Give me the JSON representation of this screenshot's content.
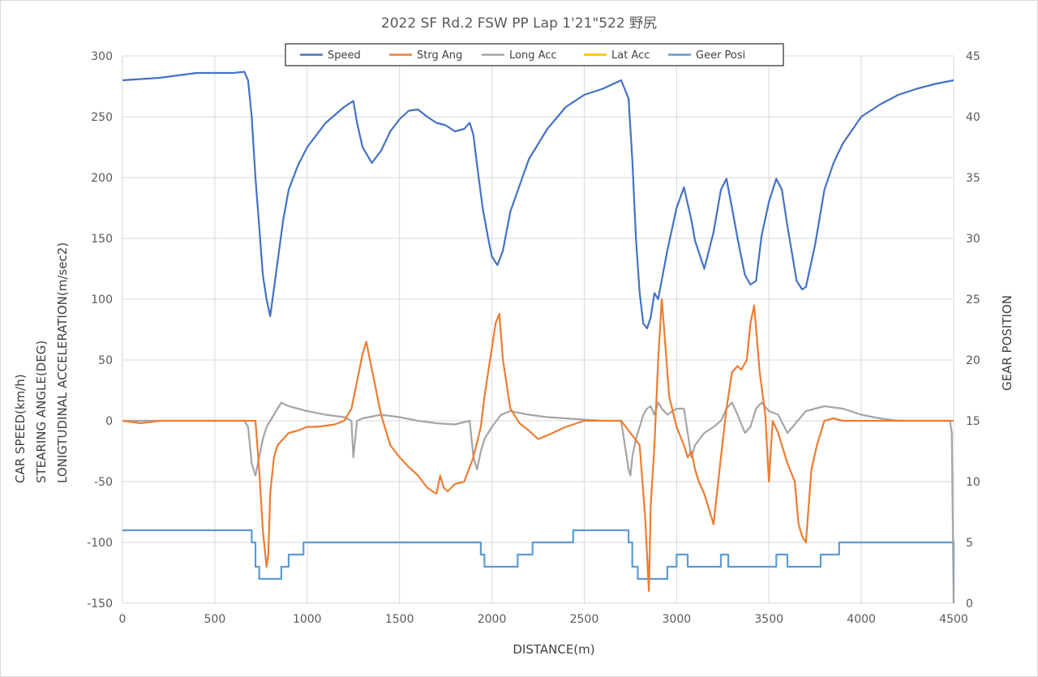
{
  "chart_data": {
    "type": "line",
    "title": "2022 SF Rd.2 FSW PP Lap 1'21\"522 野尻",
    "xlabel": "DISTANCE(m)",
    "ylabel_lines": [
      "CAR SPEED(km/h)",
      "STEARING ANGLE(DEG)",
      "LONIGTUDINAL ACCELERATION(m/sec2)"
    ],
    "y2label": "GEAR POSITION",
    "xlim": [
      0,
      4500
    ],
    "ylim": [
      -150,
      300
    ],
    "y2lim": [
      0,
      45
    ],
    "x_ticks": [
      "0",
      "500",
      "1000",
      "1500",
      "2000",
      "2500",
      "3000",
      "3500",
      "4000",
      "4500"
    ],
    "y_ticks": [
      "300",
      "250",
      "200",
      "150",
      "100",
      "50",
      "0",
      "-50",
      "-100",
      "-150"
    ],
    "y2_ticks": [
      "45",
      "40",
      "35",
      "30",
      "25",
      "20",
      "15",
      "10",
      "5",
      "0"
    ],
    "grid": true,
    "legend_position": "top",
    "series": [
      {
        "name": "Speed",
        "color": "#4472c4",
        "axis": "left",
        "x": [
          0,
          100,
          200,
          300,
          400,
          500,
          600,
          660,
          680,
          700,
          720,
          740,
          760,
          780,
          800,
          830,
          870,
          900,
          950,
          1000,
          1100,
          1200,
          1250,
          1270,
          1300,
          1350,
          1400,
          1450,
          1500,
          1550,
          1600,
          1650,
          1700,
          1750,
          1800,
          1850,
          1880,
          1900,
          1920,
          1950,
          1980,
          2000,
          2030,
          2060,
          2100,
          2200,
          2300,
          2400,
          2500,
          2600,
          2700,
          2740,
          2760,
          2780,
          2800,
          2820,
          2840,
          2860,
          2880,
          2900,
          2950,
          3000,
          3040,
          3080,
          3100,
          3150,
          3200,
          3240,
          3270,
          3300,
          3330,
          3370,
          3400,
          3430,
          3460,
          3500,
          3540,
          3570,
          3600,
          3650,
          3680,
          3700,
          3750,
          3800,
          3850,
          3900,
          4000,
          4100,
          4200,
          4300,
          4400,
          4500
        ],
        "y": [
          280,
          281,
          282,
          284,
          286,
          286,
          286,
          287,
          280,
          250,
          200,
          160,
          120,
          100,
          86,
          120,
          165,
          190,
          210,
          225,
          245,
          258,
          263,
          245,
          225,
          212,
          222,
          238,
          248,
          255,
          256,
          250,
          245,
          243,
          238,
          240,
          245,
          235,
          210,
          175,
          150,
          135,
          128,
          140,
          172,
          215,
          240,
          258,
          268,
          273,
          280,
          265,
          215,
          150,
          105,
          80,
          76,
          85,
          105,
          100,
          140,
          175,
          192,
          165,
          148,
          125,
          155,
          190,
          199,
          175,
          150,
          120,
          112,
          115,
          152,
          180,
          199,
          190,
          160,
          115,
          108,
          110,
          145,
          190,
          212,
          228,
          250,
          260,
          268,
          273,
          277,
          280
        ]
      },
      {
        "name": "Strg Ang",
        "color": "#ed7d31",
        "axis": "left",
        "x": [
          0,
          100,
          200,
          300,
          400,
          500,
          600,
          700,
          720,
          740,
          760,
          780,
          790,
          800,
          820,
          840,
          870,
          900,
          950,
          1000,
          1050,
          1100,
          1150,
          1200,
          1240,
          1280,
          1300,
          1320,
          1340,
          1360,
          1380,
          1400,
          1450,
          1500,
          1550,
          1600,
          1650,
          1700,
          1720,
          1740,
          1760,
          1800,
          1850,
          1900,
          1940,
          1960,
          1990,
          2020,
          2040,
          2060,
          2100,
          2150,
          2200,
          2250,
          2300,
          2400,
          2500,
          2600,
          2700,
          2800,
          2830,
          2850,
          2860,
          2880,
          2900,
          2920,
          2940,
          2960,
          3000,
          3040,
          3060,
          3080,
          3100,
          3120,
          3150,
          3200,
          3240,
          3270,
          3300,
          3330,
          3350,
          3380,
          3400,
          3420,
          3450,
          3480,
          3500,
          3520,
          3550,
          3600,
          3640,
          3660,
          3680,
          3700,
          3730,
          3760,
          3800,
          3850,
          3900,
          4000,
          4100,
          4200,
          4300,
          4400,
          4500
        ],
        "y": [
          0,
          -2,
          0,
          0,
          0,
          0,
          0,
          0,
          0,
          -40,
          -90,
          -120,
          -110,
          -60,
          -30,
          -20,
          -15,
          -10,
          -8,
          -5,
          -5,
          -4,
          -3,
          0,
          10,
          40,
          55,
          65,
          50,
          35,
          20,
          5,
          -20,
          -30,
          -38,
          -45,
          -55,
          -60,
          -45,
          -55,
          -58,
          -52,
          -50,
          -30,
          -5,
          20,
          50,
          80,
          88,
          50,
          10,
          -2,
          -8,
          -15,
          -12,
          -5,
          0,
          0,
          0,
          -20,
          -80,
          -140,
          -70,
          -20,
          50,
          100,
          60,
          20,
          -5,
          -20,
          -30,
          -25,
          -40,
          -50,
          -60,
          -85,
          -30,
          10,
          40,
          45,
          42,
          50,
          80,
          95,
          40,
          5,
          -50,
          0,
          -10,
          -35,
          -50,
          -85,
          -95,
          -100,
          -40,
          -20,
          0,
          2,
          0,
          0,
          0,
          0,
          0,
          0,
          0
        ]
      },
      {
        "name": "Long Acc",
        "color": "#a5a5a5",
        "axis": "left",
        "x": [
          0,
          100,
          200,
          300,
          400,
          500,
          600,
          660,
          680,
          690,
          700,
          720,
          740,
          760,
          780,
          800,
          820,
          840,
          860,
          900,
          950,
          1000,
          1100,
          1200,
          1240,
          1250,
          1270,
          1300,
          1400,
          1500,
          1600,
          1700,
          1800,
          1880,
          1900,
          1920,
          1940,
          1960,
          1980,
          2000,
          2050,
          2100,
          2200,
          2300,
          2400,
          2500,
          2600,
          2700,
          2740,
          2750,
          2760,
          2780,
          2800,
          2820,
          2840,
          2860,
          2880,
          2900,
          2920,
          2950,
          3000,
          3040,
          3060,
          3080,
          3100,
          3150,
          3200,
          3240,
          3270,
          3300,
          3330,
          3370,
          3400,
          3430,
          3460,
          3500,
          3550,
          3600,
          3700,
          3800,
          3900,
          4000,
          4100,
          4200,
          4300,
          4400,
          4480,
          4490,
          4500
        ],
        "y": [
          0,
          0,
          0,
          0,
          0,
          0,
          0,
          0,
          -5,
          -20,
          -35,
          -45,
          -30,
          -15,
          -5,
          0,
          5,
          10,
          15,
          12,
          10,
          8,
          5,
          3,
          0,
          -30,
          0,
          2,
          5,
          3,
          0,
          -2,
          -3,
          0,
          -30,
          -40,
          -25,
          -15,
          -10,
          -5,
          5,
          8,
          5,
          3,
          2,
          1,
          0,
          0,
          -40,
          -45,
          -30,
          -15,
          -5,
          5,
          10,
          12,
          5,
          15,
          10,
          5,
          10,
          10,
          -10,
          -30,
          -20,
          -10,
          -5,
          0,
          10,
          15,
          5,
          -10,
          -5,
          10,
          15,
          8,
          5,
          -10,
          8,
          12,
          10,
          5,
          2,
          0,
          0,
          0,
          0,
          -10,
          -150
        ]
      },
      {
        "name": "Lat Acc",
        "color": "#ffc000",
        "axis": "left",
        "x": [],
        "y": []
      },
      {
        "name": "Geer Posi",
        "color": "#5b9bd5",
        "axis": "right",
        "step": true,
        "x": [
          0,
          700,
          720,
          740,
          860,
          900,
          980,
          1940,
          1960,
          2140,
          2220,
          2440,
          2740,
          2760,
          2790,
          2950,
          3000,
          3060,
          3240,
          3280,
          3320,
          3540,
          3600,
          3780,
          3880,
          4490,
          4500
        ],
        "y": [
          6,
          5,
          3,
          2,
          3,
          4,
          5,
          4,
          3,
          4,
          5,
          6,
          5,
          3,
          2,
          3,
          4,
          3,
          4,
          3,
          3,
          4,
          3,
          4,
          5,
          5,
          0
        ]
      }
    ]
  }
}
